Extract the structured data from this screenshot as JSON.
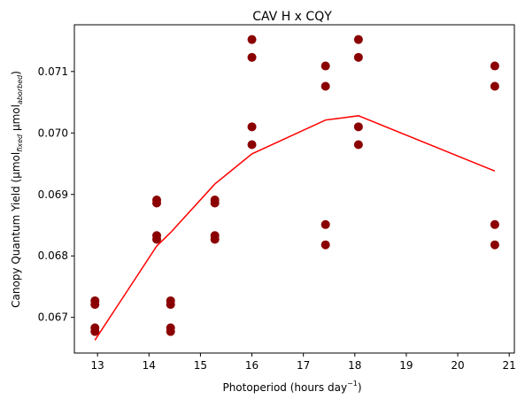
{
  "chart_data": {
    "type": "scatter",
    "title": "CAV H x CQY",
    "xlabel": {
      "text": "Photoperiod (hours day",
      "sup": "−1",
      "tail": ")"
    },
    "ylabel": {
      "text": "Canopy Quantum Yield (µmol",
      "sub1": "fixed",
      "mid": " µmol",
      "sub2": "aborbed",
      "tail": ")"
    },
    "xlim": [
      12.55,
      21.1
    ],
    "ylim": [
      0.06642,
      0.07176
    ],
    "xticks": [
      13,
      14,
      15,
      16,
      17,
      18,
      19,
      20,
      21
    ],
    "xtick_labels": [
      "13",
      "14",
      "15",
      "16",
      "17",
      "18",
      "19",
      "20",
      "21"
    ],
    "yticks": [
      0.067,
      0.068,
      0.069,
      0.07,
      0.071
    ],
    "ytick_labels": [
      "0.067",
      "0.068",
      "0.069",
      "0.070",
      "0.071"
    ],
    "grid": false,
    "scatter_color": "#8b0000",
    "line_color": "#ff0000",
    "points": [
      {
        "x": 12.95,
        "y": 0.06727
      },
      {
        "x": 12.95,
        "y": 0.06721
      },
      {
        "x": 12.95,
        "y": 0.06683
      },
      {
        "x": 12.95,
        "y": 0.06677
      },
      {
        "x": 14.15,
        "y": 0.06891
      },
      {
        "x": 14.15,
        "y": 0.06886
      },
      {
        "x": 14.15,
        "y": 0.06833
      },
      {
        "x": 14.15,
        "y": 0.06827
      },
      {
        "x": 14.42,
        "y": 0.06727
      },
      {
        "x": 14.42,
        "y": 0.06721
      },
      {
        "x": 14.42,
        "y": 0.06683
      },
      {
        "x": 14.42,
        "y": 0.06677
      },
      {
        "x": 15.28,
        "y": 0.06891
      },
      {
        "x": 15.28,
        "y": 0.06886
      },
      {
        "x": 15.28,
        "y": 0.06833
      },
      {
        "x": 15.28,
        "y": 0.06827
      },
      {
        "x": 16.0,
        "y": 0.07152
      },
      {
        "x": 16.0,
        "y": 0.07123
      },
      {
        "x": 16.0,
        "y": 0.0701
      },
      {
        "x": 16.0,
        "y": 0.06981
      },
      {
        "x": 17.43,
        "y": 0.07109
      },
      {
        "x": 17.43,
        "y": 0.07076
      },
      {
        "x": 17.43,
        "y": 0.06851
      },
      {
        "x": 17.43,
        "y": 0.06818
      },
      {
        "x": 18.07,
        "y": 0.07152
      },
      {
        "x": 18.07,
        "y": 0.07123
      },
      {
        "x": 18.07,
        "y": 0.0701
      },
      {
        "x": 18.07,
        "y": 0.06981
      },
      {
        "x": 20.72,
        "y": 0.07109
      },
      {
        "x": 20.72,
        "y": 0.07076
      },
      {
        "x": 20.72,
        "y": 0.06851
      },
      {
        "x": 20.72,
        "y": 0.06818
      }
    ],
    "line": {
      "x": [
        12.95,
        14.15,
        14.42,
        15.28,
        16.0,
        17.43,
        18.07,
        20.72
      ],
      "y": [
        0.06663,
        0.06816,
        0.06838,
        0.06917,
        0.06966,
        0.07021,
        0.07028,
        0.06938
      ]
    }
  }
}
